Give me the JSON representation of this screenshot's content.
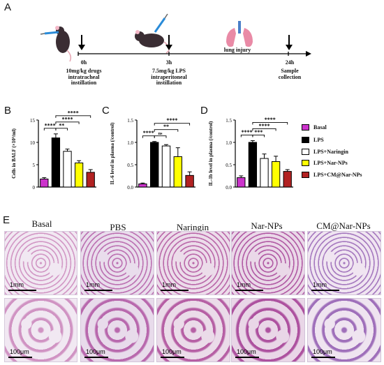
{
  "panel_labels": {
    "a": "A",
    "b": "B",
    "c": "C",
    "d": "D",
    "e": "E"
  },
  "timeline": {
    "event_label": "lung injury",
    "points": [
      {
        "time": "0h",
        "desc1": "10mg/kg drugs",
        "desc2": "intratracheal",
        "desc3": "instillation"
      },
      {
        "time": "3h",
        "desc1": "7.5mg/kg LPS",
        "desc2": "intraperitoneal",
        "desc3": "instillation"
      },
      {
        "time": "24h",
        "desc1": "Sample",
        "desc2": "collection",
        "desc3": ""
      }
    ]
  },
  "legend": [
    {
      "label": "Basal",
      "color": "#cc33cc"
    },
    {
      "label": "LPS",
      "color": "#000000"
    },
    {
      "label": "LPS+Naringin",
      "color": "#ffffff"
    },
    {
      "label": "LPS+Nar-NPs",
      "color": "#ffff00"
    },
    {
      "label": "LPS+CM@Nar-NPs",
      "color": "#b22222"
    }
  ],
  "chart_data": [
    {
      "type": "bar",
      "panel": "B",
      "ylabel": "Cells in BALF (×10⁵/ml)",
      "categories": [
        "Basal",
        "LPS",
        "LPS+Naringin",
        "LPS+Nar-NPs",
        "LPS+CM@Nar-NPs"
      ],
      "values": [
        1.8,
        11.0,
        8.0,
        5.4,
        3.3
      ],
      "errors": [
        0.3,
        0.9,
        0.5,
        0.5,
        0.6
      ],
      "ylim": [
        0,
        15
      ],
      "yticks": [
        "0",
        "5",
        "10",
        "15"
      ],
      "ytick_values": [
        0,
        5,
        10,
        15
      ],
      "significance": [
        {
          "from": 0,
          "to": 1,
          "label": "****"
        },
        {
          "from": 1,
          "to": 2,
          "label": "**"
        },
        {
          "from": 1,
          "to": 3,
          "label": "****"
        },
        {
          "from": 1,
          "to": 4,
          "label": "****"
        }
      ]
    },
    {
      "type": "bar",
      "panel": "C",
      "ylabel": "IL-6 level in plasma (/control)",
      "categories": [
        "Basal",
        "LPS",
        "LPS+Naringin",
        "LPS+Nar-NPs",
        "LPS+CM@Nar-NPs"
      ],
      "values": [
        0.07,
        1.0,
        0.92,
        0.68,
        0.26
      ],
      "errors": [
        0.02,
        0.02,
        0.03,
        0.2,
        0.08
      ],
      "ylim": [
        0,
        1.5
      ],
      "yticks": [
        "0.0",
        "0.5",
        "1.0",
        "1.5"
      ],
      "ytick_values": [
        0,
        0.5,
        1.0,
        1.5
      ],
      "significance": [
        {
          "from": 0,
          "to": 1,
          "label": "****"
        },
        {
          "from": 1,
          "to": 2,
          "label": "ns"
        },
        {
          "from": 1,
          "to": 3,
          "label": "**"
        },
        {
          "from": 1,
          "to": 4,
          "label": "****"
        }
      ]
    },
    {
      "type": "bar",
      "panel": "D",
      "ylabel": "IL-1b level in plasma (/control)",
      "categories": [
        "Basal",
        "LPS",
        "LPS+Naringin",
        "LPS+Nar-NPs",
        "LPS+CM@Nar-NPs"
      ],
      "values": [
        0.21,
        1.0,
        0.64,
        0.57,
        0.35
      ],
      "errors": [
        0.04,
        0.04,
        0.1,
        0.12,
        0.04
      ],
      "ylim": [
        0,
        1.5
      ],
      "yticks": [
        "0.0",
        "0.5",
        "1.0",
        "1.5"
      ],
      "ytick_values": [
        0,
        0.5,
        1.0,
        1.5
      ],
      "significance": [
        {
          "from": 0,
          "to": 1,
          "label": "****"
        },
        {
          "from": 1,
          "to": 2,
          "label": "***"
        },
        {
          "from": 1,
          "to": 3,
          "label": "****"
        },
        {
          "from": 1,
          "to": 4,
          "label": "****"
        }
      ]
    }
  ],
  "histology": {
    "columns": [
      "Basal",
      "PBS",
      "Naringin",
      "Nar-NPs",
      "CM@Nar-NPs"
    ],
    "scale_low": "1mm",
    "scale_high": "100μm"
  }
}
